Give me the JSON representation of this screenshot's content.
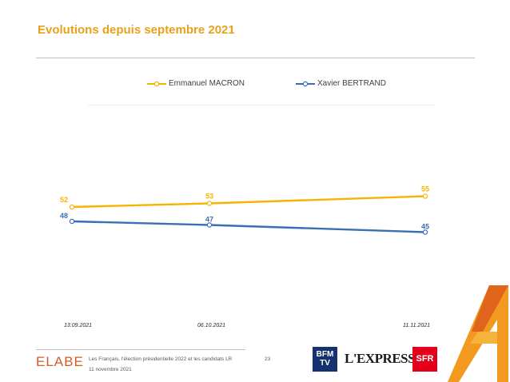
{
  "header": {
    "title": "Evolutions depuis septembre 2021"
  },
  "chart_data": {
    "type": "line",
    "categories": [
      "13.09.2021",
      "06.10.2021",
      "11.11.2021"
    ],
    "series": [
      {
        "name": "Emmanuel MACRON",
        "values": [
          52,
          53,
          55
        ],
        "color": "#f5b400"
      },
      {
        "name": "Xavier BERTRAND",
        "values": [
          48,
          47,
          45
        ],
        "color": "#3a6fb5"
      }
    ],
    "data_labels": true,
    "legend": "top",
    "grid": false
  },
  "footer": {
    "logo": "ELABE",
    "study_title": "Les Français, l'élection présidentielle 2022 et les candidats LR",
    "date": "11 novembre 2021",
    "page_number": "23",
    "partners": {
      "bfm": "BFM TV",
      "lexpress": "L'EXPRESS",
      "sfr": "SFR"
    }
  }
}
